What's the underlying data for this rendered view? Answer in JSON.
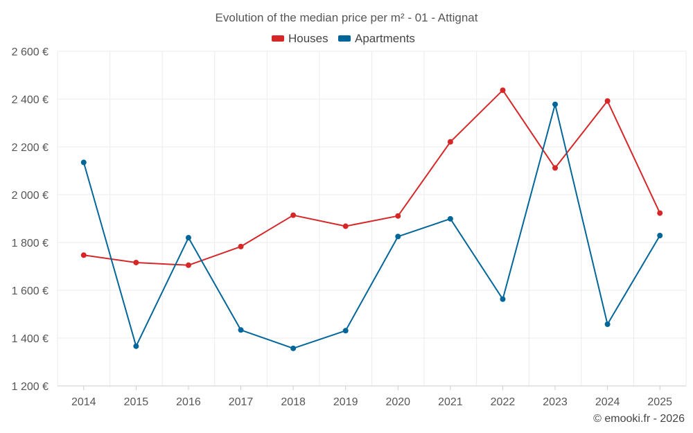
{
  "chart_data": {
    "type": "line",
    "title": "Evolution of the median price per m² - 01 - Attignat",
    "categories": [
      "2014",
      "2015",
      "2016",
      "2017",
      "2018",
      "2019",
      "2020",
      "2021",
      "2022",
      "2023",
      "2024",
      "2025"
    ],
    "series": [
      {
        "name": "Houses",
        "color": "#d62728",
        "values": [
          1747,
          1716,
          1705,
          1783,
          1914,
          1868,
          1911,
          2221,
          2437,
          2112,
          2392,
          1923
        ]
      },
      {
        "name": "Apartments",
        "color": "#006699",
        "values": [
          2135,
          1366,
          1820,
          1434,
          1357,
          1431,
          1825,
          1899,
          1563,
          2378,
          1458,
          1829
        ]
      }
    ],
    "ylim": [
      1200,
      2600
    ],
    "y_ticks": [
      1200,
      1400,
      1600,
      1800,
      2000,
      2200,
      2400,
      2600
    ],
    "y_tick_labels": [
      "1 200 €",
      "1 400 €",
      "1 600 €",
      "1 800 €",
      "2 000 €",
      "2 200 €",
      "2 400 €",
      "2 600 €"
    ],
    "legend_position": "top-center",
    "grid": true
  },
  "credit": "© emooki.fr - 2026"
}
